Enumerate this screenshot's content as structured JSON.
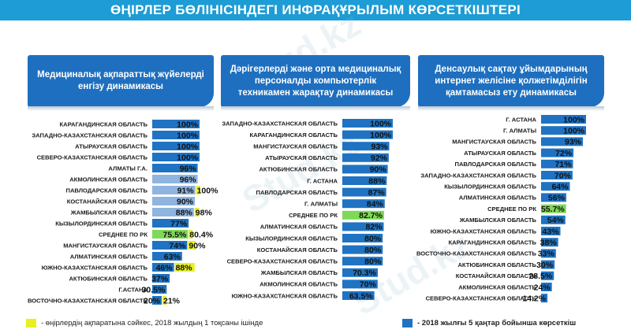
{
  "title": "ӨҢІРЛЕР БӨЛІНІСІНДЕГІ ИНФРАҚҰРЫЛЫМ КӨРСЕТКІШТЕРІ",
  "watermark": "Stud.kz",
  "colors": {
    "blue": "#1e6fbf",
    "bar": "#1f73c2",
    "bar_light": "#8fb4df",
    "highlight": "#e8f022",
    "green": "#7ed957"
  },
  "legend": {
    "yellow_label": "- өңірлердің ақпаратына сәйкес, 2018 жылдың 1 тоқсаны ішінде",
    "blue_label": "- 2018 жылғы 5 қаңтар бойынша көрсеткіш"
  },
  "chart_data": [
    {
      "type": "bar",
      "title": "Медициналық ақпараттық жүйелерді енгізу динамикасы",
      "categories": [
        "КАРАГАНДИНСКАЯ ОБЛАСТЬ",
        "ЗАПАДНО-КАЗАХСТАНСКАЯ ОБЛАСТЬ",
        "АТЫРАУСКАЯ ОБЛАСТЬ",
        "СЕВЕРО-КАЗАХСТАНСКАЯ ОБЛАСТЬ",
        "АЛМАТЫ Г.А.",
        "АКМОЛИНСКАЯ ОБЛАСТЬ",
        "ПАВЛОДАРСКАЯ ОБЛАСТЬ",
        "КОСТАНАЙСКАЯ ОБЛАСТЬ",
        "ЖАМБЫЛСКАЯ ОБЛАСТЬ",
        "КЫЗЫЛОРДИНСКАЯ ОБЛАСТЬ",
        "СРЕДНЕЕ ПО РК",
        "МАНГИСТАУСКАЯ ОБЛАСТЬ",
        "АЛМАТИНСКАЯ ОБЛАСТЬ",
        "ЮЖНО-КАЗАХСТАНСКАЯ ОБЛАСТЬ",
        "АКТЮБИНСКАЯ ОБЛАСТЬ",
        "Г.АСТАНА",
        "ВОСТОЧНО-КАЗАХСТАНСКАЯ ОБЛАСТЬ"
      ],
      "series": [
        {
          "name": "2018 жылғы 5 қаңтар бойынша көрсеткіш",
          "values": [
            100,
            100,
            100,
            100,
            96,
            96,
            91,
            90,
            88,
            77,
            75.5,
            74,
            63,
            46,
            37,
            30.5,
            20
          ],
          "labels": [
            "100%",
            "100%",
            "100%",
            "100%",
            "96%",
            "96%",
            "91%",
            "90%",
            "88%",
            "77%",
            "75.5%",
            "74%",
            "63%",
            "46%",
            "37%",
            "30.5%",
            "20%"
          ]
        },
        {
          "name": "2018 жылдың 1 тоқсаны",
          "values": [
            null,
            null,
            null,
            null,
            null,
            null,
            100,
            null,
            98,
            null,
            80.4,
            90,
            null,
            88,
            null,
            null,
            21
          ],
          "labels": [
            null,
            null,
            null,
            null,
            null,
            null,
            "100%",
            null,
            "98%",
            null,
            "80.4%",
            "90%",
            null,
            "88%",
            null,
            null,
            "21%"
          ]
        }
      ],
      "xlim": [
        0,
        100
      ]
    },
    {
      "type": "bar",
      "title": "Дәрігерлерді және орта медициналық персоналды компьютерлік техникамен жарақтау динамикасы",
      "categories": [
        "ЗАПАДНО-КАЗАХСТАНСКАЯ ОБЛАСТЬ",
        "КАРАГАНДИНСКАЯ ОБЛАСТЬ",
        "МАНГИСТАУСКАЯ ОБЛАСТЬ",
        "АТЫРАУСКАЯ ОБЛАСТЬ",
        "АКТЮБИНСКАЯ ОБЛАСТЬ",
        "Г. АСТАНА",
        "ПАВЛОДАРСКАЯ ОБЛАСТЬ",
        "Г. АЛМАТЫ",
        "СРЕДНЕЕ ПО РК",
        "АЛМАТИНСКАЯ ОБЛАСТЬ",
        "КЫЗЫЛОРДИНСКАЯ ОБЛАСТЬ",
        "КОСТАНАЙСКАЯ ОБЛАСТЬ",
        "СЕВЕРО-КАЗАХСТАНСКАЯ ОБЛАСТЬ",
        "ЖАМБЫЛСКАЯ ОБЛАСТЬ",
        "АКМОЛИНСКАЯ ОБЛАСТЬ",
        "ЮЖНО-КАЗАХСТАНСКАЯ ОБЛАСТЬ"
      ],
      "series": [
        {
          "name": "2018 жылғы 5 қаңтар бойынша көрсеткіш",
          "values": [
            100,
            100,
            93,
            92,
            90,
            88,
            87,
            84,
            82.7,
            82,
            80,
            80,
            80,
            70.3,
            70,
            63.5
          ],
          "labels": [
            "100%",
            "100%",
            "93%",
            "92%",
            "90%",
            "88%",
            "87%",
            "84%",
            "82.7%",
            "82%",
            "80%",
            "80%",
            "80%",
            "70.3%",
            "70%",
            "63.5%"
          ]
        }
      ],
      "xlim": [
        0,
        100
      ]
    },
    {
      "type": "bar",
      "title": "Денсаулық сақтау ұйымдарының интернет желісіне қолжетімділігін қамтамасыз ету динамикасы",
      "categories": [
        "Г. АСТАНА",
        "Г. АЛМАТЫ",
        "МАНГИСТАУСКАЯ ОБЛАСТЬ",
        "АТЫРАУСКАЯ ОБЛАСТЬ",
        "ПАВЛОДАРСКАЯ ОБЛАСТЬ",
        "ЗАПАДНО-КАЗАХСТАНСКАЯ ОБЛАСТЬ",
        "КЫЗЫЛОРДИНСКАЯ ОБЛАСТЬ",
        "АЛМАТИНСКАЯ ОБЛАСТЬ",
        "СРЕДНЕЕ ПО РК",
        "ЖАМБЫЛСКАЯ ОБЛАСТЬ",
        "ЮЖНО-КАЗАХСТАНСКАЯ ОБЛАСТЬ",
        "КАРАГАНДИНСКАЯ ОБЛАСТЬ",
        "ВОСТОЧНО-КАЗАХСТАНСКАЯ ОБЛАСТЬ",
        "АКТЮБИНСКАЯ ОБЛАСТЬ",
        "КОСТАНАЙСКАЯ ОБЛАСТЬ",
        "АКМОЛИНСКАЯ ОБЛАСТЬ",
        "СЕВЕРО-КАЗАХСТАНСКАЯ ОБЛАСТЬ"
      ],
      "series": [
        {
          "name": "2018 жылғы 5 қаңтар бойынша көрсеткіш",
          "values": [
            100,
            100,
            93,
            72,
            71,
            70,
            64,
            56,
            55.7,
            54,
            43,
            38,
            33,
            30,
            28.5,
            24,
            14.2
          ],
          "labels": [
            "100%",
            "100%",
            "93%",
            "72%",
            "71%",
            "70%",
            "64%",
            "56%",
            "55.7%",
            "54%",
            "43%",
            "38%",
            "33%",
            "30%",
            "28.5%",
            "24%",
            "14.2%"
          ]
        }
      ],
      "xlim": [
        0,
        100
      ]
    }
  ]
}
